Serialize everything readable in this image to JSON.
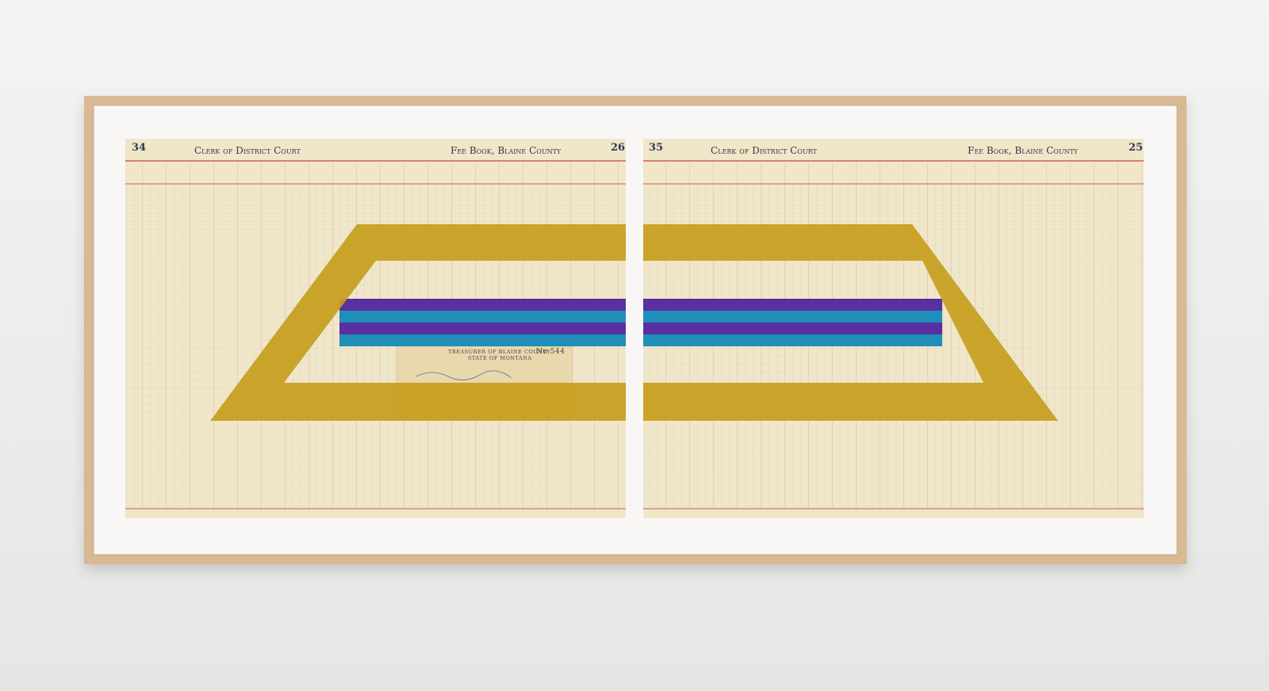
{
  "left_page": {
    "page_number_left": "34",
    "heading_left": "Clerk of District Court",
    "heading_right": "Fee Book, Blaine County",
    "page_number_right": "26"
  },
  "right_page": {
    "page_number_left": "35",
    "heading_left": "Clerk of District Court",
    "heading_right": "Fee Book, Blaine County",
    "page_number_right": "25"
  },
  "check": {
    "title": "TREASURER OF BLAINE COUNTY",
    "subtitle": "STATE OF MONTANA",
    "number": "No 544"
  }
}
